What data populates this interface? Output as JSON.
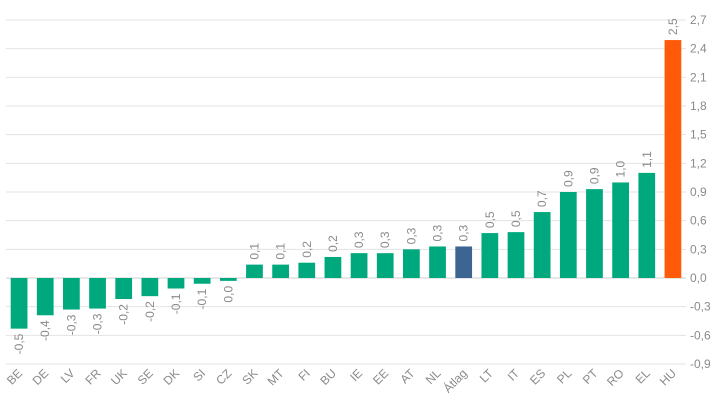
{
  "chart_data": {
    "type": "bar",
    "categories": [
      "BE",
      "DE",
      "LV",
      "FR",
      "UK",
      "SE",
      "DK",
      "SI",
      "CZ",
      "SK",
      "MT",
      "FI",
      "BU",
      "IE",
      "EE",
      "AT",
      "NL",
      "Átlag",
      "LT",
      "IT",
      "ES",
      "PL",
      "PT",
      "RO",
      "EL",
      "HU"
    ],
    "values": [
      -0.53,
      -0.39,
      -0.33,
      -0.32,
      -0.22,
      -0.19,
      -0.11,
      -0.06,
      -0.03,
      0.14,
      0.14,
      0.16,
      0.22,
      0.26,
      0.26,
      0.3,
      0.33,
      0.33,
      0.47,
      0.48,
      0.69,
      0.9,
      0.93,
      1.0,
      1.1,
      2.49
    ],
    "data_labels": [
      "-0,5",
      "-0,4",
      "-0,3",
      "-0,3",
      "-0,2",
      "-0,2",
      "-0,1",
      "-0,1",
      "0,0",
      "0,1",
      "0,1",
      "0,2",
      "0,2",
      "0,3",
      "0,3",
      "0,3",
      "0,3",
      "0,3",
      "0,5",
      "0,5",
      "0,7",
      "0,9",
      "0,9",
      "1,0",
      "1,1",
      "2,5"
    ],
    "colors": [
      "#00a87d",
      "#00a87d",
      "#00a87d",
      "#00a87d",
      "#00a87d",
      "#00a87d",
      "#00a87d",
      "#00a87d",
      "#00a87d",
      "#00a87d",
      "#00a87d",
      "#00a87d",
      "#00a87d",
      "#00a87d",
      "#00a87d",
      "#00a87d",
      "#00a87d",
      "#3d6591",
      "#00a87d",
      "#00a87d",
      "#00a87d",
      "#00a87d",
      "#00a87d",
      "#00a87d",
      "#00a87d",
      "#ff5a0a"
    ],
    "y_ticks": [
      {
        "value": 2.7,
        "label": "2,7"
      },
      {
        "value": 2.4,
        "label": "2,4"
      },
      {
        "value": 2.1,
        "label": "2,1"
      },
      {
        "value": 1.8,
        "label": "1,8"
      },
      {
        "value": 1.5,
        "label": "1,5"
      },
      {
        "value": 1.2,
        "label": "1,2"
      },
      {
        "value": 0.9,
        "label": "0,9"
      },
      {
        "value": 0.6,
        "label": "0,6"
      },
      {
        "value": 0.3,
        "label": "0,3"
      },
      {
        "value": 0.0,
        "label": "0,0"
      },
      {
        "value": -0.3,
        "label": "-0,3"
      },
      {
        "value": -0.6,
        "label": "-0,6"
      },
      {
        "value": -0.9,
        "label": "-0,9"
      }
    ],
    "ylim": [
      -0.9,
      2.7
    ],
    "y_axis_side": "right",
    "grid": true,
    "legend": "none",
    "title": "",
    "xlabel": "",
    "ylabel": ""
  }
}
